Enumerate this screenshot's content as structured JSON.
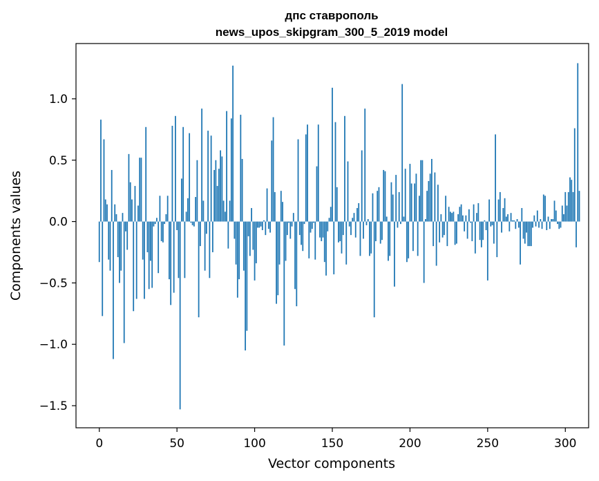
{
  "chart_data": {
    "type": "bar",
    "title": "дпс ставрополь",
    "subtitle": "news_upos_skipgram_300_5_2019 model",
    "xlabel": "Vector components",
    "ylabel": "Components values",
    "xlim": [
      -15,
      315
    ],
    "ylim": [
      -1.68,
      1.45
    ],
    "xticks": [
      0,
      50,
      100,
      150,
      200,
      250,
      300
    ],
    "xtick_labels": [
      "0",
      "50",
      "100",
      "150",
      "200",
      "250",
      "300"
    ],
    "yticks": [
      -1.5,
      -1.0,
      -0.5,
      0.0,
      0.5,
      1.0
    ],
    "ytick_labels": [
      "−1.5",
      "−1.0",
      "−0.5",
      "0.0",
      "0.5",
      "1.0"
    ],
    "grid": false,
    "bar_color": "#1f77b4",
    "values": [
      -0.33,
      0.83,
      -0.77,
      0.67,
      0.18,
      0.14,
      -0.31,
      -0.4,
      0.42,
      -1.12,
      0.14,
      0.06,
      -0.29,
      -0.5,
      -0.4,
      0.07,
      -0.99,
      -0.08,
      -0.23,
      0.55,
      0.32,
      0.18,
      -0.73,
      0.29,
      -0.63,
      0.13,
      0.52,
      0.52,
      -0.31,
      -0.63,
      0.77,
      -0.25,
      -0.55,
      -0.32,
      -0.54,
      -0.04,
      -0.02,
      0.03,
      -0.42,
      0.21,
      -0.16,
      -0.17,
      -0.02,
      0.06,
      0.21,
      -0.47,
      -0.68,
      0.78,
      -0.58,
      0.86,
      -0.07,
      -0.46,
      -1.53,
      0.35,
      0.77,
      -0.46,
      0.08,
      0.19,
      0.72,
      -0.01,
      -0.03,
      -0.04,
      0.2,
      0.5,
      -0.78,
      -0.2,
      0.92,
      0.17,
      -0.4,
      -0.1,
      0.74,
      -0.46,
      0.7,
      -0.25,
      0.42,
      0.5,
      0.29,
      0.43,
      0.58,
      0.53,
      0.17,
      0.08,
      0.9,
      -0.22,
      0.17,
      0.84,
      1.27,
      -0.14,
      -0.35,
      -0.62,
      -0.47,
      0.87,
      0.51,
      -0.4,
      -1.05,
      -0.89,
      -0.12,
      -0.28,
      0.11,
      -0.23,
      -0.48,
      -0.34,
      -0.05,
      -0.05,
      -0.04,
      -0.07,
      0.01,
      -0.11,
      0.27,
      -0.06,
      -0.09,
      0.66,
      0.85,
      0.24,
      -0.67,
      -0.6,
      -0.35,
      0.25,
      0.16,
      -1.01,
      -0.32,
      -0.11,
      -0.01,
      -0.14,
      -0.04,
      0.07,
      -0.55,
      -0.69,
      0.67,
      -0.11,
      -0.19,
      -0.24,
      -0.02,
      0.71,
      0.79,
      -0.3,
      -0.09,
      -0.06,
      -0.01,
      -0.31,
      0.45,
      0.79,
      -0.13,
      -0.16,
      -0.13,
      -0.33,
      -0.44,
      -0.08,
      0.03,
      0.12,
      1.09,
      -0.43,
      0.81,
      0.28,
      -0.17,
      -0.16,
      -0.26,
      -0.11,
      0.86,
      -0.35,
      0.49,
      -0.04,
      -0.11,
      0.03,
      0.07,
      -0.13,
      0.11,
      0.15,
      -0.28,
      0.58,
      -0.14,
      0.92,
      -0.03,
      0.02,
      -0.28,
      -0.26,
      0.23,
      -0.78,
      -0.16,
      0.25,
      0.28,
      -0.18,
      -0.15,
      0.42,
      0.41,
      0.04,
      -0.32,
      -0.28,
      0.32,
      0.22,
      -0.53,
      0.38,
      -0.05,
      0.24,
      -0.02,
      1.12,
      0.04,
      0.43,
      -0.33,
      -0.3,
      0.47,
      0.31,
      -0.24,
      0.31,
      0.39,
      -0.28,
      0.21,
      0.5,
      0.5,
      -0.5,
      0.02,
      0.25,
      0.33,
      0.39,
      0.51,
      -0.2,
      0.4,
      -0.36,
      0.3,
      -0.17,
      0.06,
      -0.13,
      -0.11,
      0.21,
      -0.2,
      0.12,
      0.08,
      0.07,
      0.08,
      -0.19,
      -0.18,
      0.06,
      0.12,
      0.14,
      0.05,
      -0.08,
      0.05,
      -0.14,
      0.1,
      -0.01,
      -0.16,
      0.14,
      -0.26,
      0.07,
      0.15,
      -0.15,
      -0.21,
      -0.15,
      0.01,
      -0.07,
      -0.48,
      0.18,
      -0.04,
      -0.03,
      -0.18,
      0.71,
      -0.29,
      0.18,
      0.24,
      -0.09,
      0.11,
      0.19,
      0.04,
      0.06,
      -0.08,
      0.07,
      0.01,
      0.01,
      -0.06,
      0.02,
      -0.05,
      -0.35,
      0.11,
      -0.14,
      -0.18,
      -0.09,
      -0.2,
      -0.2,
      -0.2,
      -0.05,
      0.05,
      -0.04,
      0.09,
      -0.05,
      0.02,
      -0.06,
      0.22,
      0.21,
      -0.07,
      0.04,
      -0.06,
      0.02,
      0.02,
      0.17,
      0.09,
      -0.02,
      -0.06,
      -0.05,
      0.13,
      0.06,
      0.24,
      0.13,
      0.24,
      0.36,
      0.34,
      0.24,
      0.76,
      -0.21,
      1.29,
      0.25
    ]
  }
}
